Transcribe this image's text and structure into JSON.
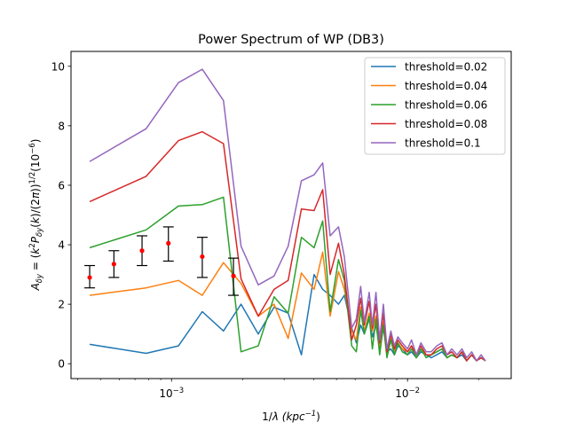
{
  "chart_data": {
    "type": "line",
    "title": "Power Spectrum of WP (DB3)",
    "xlabel": "1/λ (kpc⁻¹)",
    "ylabel": "A_δy = (k²P_δy(k)/(2π))^{1/2}(10⁻⁶)",
    "xscale": "log",
    "xlim": [
      0.000375,
      0.0275
    ],
    "ylim": [
      -0.5,
      10.5
    ],
    "yticks": [
      0,
      2,
      4,
      6,
      8,
      10
    ],
    "xticks_major": [
      0.001,
      0.01
    ],
    "xtick_labels": [
      "10⁻³",
      "10⁻²"
    ],
    "grid": false,
    "legend_position": "top-right",
    "legend": [
      "threshold=0.02",
      "threshold=0.04",
      "threshold=0.06",
      "threshold=0.08",
      "threshold=0.1"
    ],
    "series": [
      {
        "name": "threshold=0.02",
        "color": "#1f77b4",
        "x": [
          0.00045,
          0.00078,
          0.00107,
          0.00135,
          0.00166,
          0.00197,
          0.00233,
          0.00272,
          0.00312,
          0.00355,
          0.00402,
          0.00437,
          0.0047,
          0.0051,
          0.0054,
          0.0058,
          0.00607,
          0.00633,
          0.00656,
          0.00688,
          0.0071,
          0.00735,
          0.00762,
          0.0079,
          0.00818,
          0.0085,
          0.0088,
          0.0091,
          0.0095,
          0.01,
          0.0104,
          0.0109,
          0.0114,
          0.012,
          0.0126,
          0.0133,
          0.014,
          0.0147,
          0.0154,
          0.0162,
          0.017,
          0.0178,
          0.0187,
          0.0196,
          0.0205,
          0.0214
        ],
        "y": [
          0.65,
          0.35,
          0.6,
          1.75,
          1.1,
          2.0,
          1.0,
          1.9,
          1.7,
          0.3,
          3.0,
          2.5,
          2.3,
          2.0,
          2.3,
          1.2,
          0.7,
          1.3,
          1.0,
          1.5,
          0.9,
          1.3,
          0.5,
          1.2,
          0.4,
          0.5,
          0.3,
          0.6,
          0.5,
          0.3,
          0.4,
          0.2,
          0.4,
          0.3,
          0.2,
          0.3,
          0.4,
          0.2,
          0.3,
          0.2,
          0.3,
          0.1,
          0.3,
          0.1,
          0.2,
          0.1
        ]
      },
      {
        "name": "threshold=0.04",
        "color": "#ff7f0e",
        "x": [
          0.00045,
          0.00078,
          0.00107,
          0.00135,
          0.00166,
          0.00197,
          0.00233,
          0.00272,
          0.00312,
          0.00355,
          0.00402,
          0.00437,
          0.0047,
          0.0051,
          0.0054,
          0.0058,
          0.00607,
          0.00633,
          0.00656,
          0.00688,
          0.0071,
          0.00735,
          0.00762,
          0.0079,
          0.00818,
          0.0085,
          0.0088,
          0.0091,
          0.0095,
          0.01,
          0.0104,
          0.0109,
          0.0114,
          0.012,
          0.0126,
          0.0133,
          0.014,
          0.0147,
          0.0154,
          0.0162,
          0.017,
          0.0178,
          0.0187,
          0.0196,
          0.0205,
          0.0214
        ],
        "y": [
          2.3,
          2.55,
          2.8,
          2.3,
          3.4,
          2.7,
          1.6,
          2.0,
          0.85,
          3.05,
          2.5,
          3.75,
          1.6,
          3.1,
          2.5,
          1.1,
          0.8,
          1.9,
          1.1,
          1.7,
          1.1,
          1.6,
          0.6,
          1.4,
          0.3,
          0.9,
          0.4,
          0.7,
          0.5,
          0.4,
          0.6,
          0.2,
          0.5,
          0.3,
          0.3,
          0.4,
          0.5,
          0.2,
          0.3,
          0.2,
          0.4,
          0.1,
          0.3,
          0.1,
          0.2,
          0.1
        ]
      },
      {
        "name": "threshold=0.06",
        "color": "#2ca02c",
        "x": [
          0.00045,
          0.00078,
          0.00107,
          0.00135,
          0.00166,
          0.00197,
          0.00233,
          0.00272,
          0.00312,
          0.00355,
          0.00402,
          0.00437,
          0.0047,
          0.0051,
          0.0054,
          0.0058,
          0.00607,
          0.00633,
          0.00656,
          0.00688,
          0.0071,
          0.00735,
          0.00762,
          0.0079,
          0.00818,
          0.0085,
          0.0088,
          0.0091,
          0.0095,
          0.01,
          0.0104,
          0.0109,
          0.0114,
          0.012,
          0.0126,
          0.0133,
          0.014,
          0.0147,
          0.0154,
          0.0162,
          0.017,
          0.0178,
          0.0187,
          0.0196,
          0.0205,
          0.0214
        ],
        "y": [
          3.9,
          4.5,
          5.3,
          5.35,
          5.6,
          0.4,
          0.6,
          2.25,
          1.7,
          4.25,
          3.9,
          4.8,
          1.75,
          3.5,
          2.8,
          0.6,
          0.4,
          1.8,
          1.0,
          1.6,
          0.5,
          1.5,
          0.3,
          1.3,
          0.2,
          0.8,
          0.3,
          0.7,
          0.4,
          0.3,
          0.5,
          0.2,
          0.5,
          0.2,
          0.3,
          0.4,
          0.5,
          0.2,
          0.3,
          0.2,
          0.4,
          0.1,
          0.3,
          0.1,
          0.2,
          0.1
        ]
      },
      {
        "name": "threshold=0.08",
        "color": "#d62728",
        "x": [
          0.00045,
          0.00078,
          0.00107,
          0.00135,
          0.00166,
          0.00197,
          0.00233,
          0.00272,
          0.00312,
          0.00355,
          0.00402,
          0.00437,
          0.0047,
          0.0051,
          0.0054,
          0.0058,
          0.00607,
          0.00633,
          0.00656,
          0.00688,
          0.0071,
          0.00735,
          0.00762,
          0.0079,
          0.00818,
          0.0085,
          0.0088,
          0.0091,
          0.0095,
          0.01,
          0.0104,
          0.0109,
          0.0114,
          0.012,
          0.0126,
          0.0133,
          0.014,
          0.0147,
          0.0154,
          0.0162,
          0.017,
          0.0178,
          0.0187,
          0.0196,
          0.0205,
          0.0214
        ],
        "y": [
          5.45,
          6.3,
          7.5,
          7.8,
          7.4,
          2.85,
          1.6,
          2.5,
          2.8,
          5.2,
          5.15,
          5.85,
          3.0,
          4.05,
          3.0,
          0.8,
          1.3,
          2.2,
          1.3,
          2.1,
          1.2,
          2.0,
          0.7,
          1.7,
          0.4,
          1.0,
          0.5,
          0.8,
          0.6,
          0.4,
          0.6,
          0.3,
          0.6,
          0.3,
          0.3,
          0.5,
          0.6,
          0.3,
          0.4,
          0.2,
          0.4,
          0.1,
          0.3,
          0.1,
          0.2,
          0.1
        ]
      },
      {
        "name": "threshold=0.1",
        "color": "#9467bd",
        "x": [
          0.00045,
          0.00078,
          0.00107,
          0.00135,
          0.00166,
          0.00197,
          0.00233,
          0.00272,
          0.00312,
          0.00355,
          0.00402,
          0.00437,
          0.0047,
          0.0051,
          0.0054,
          0.0058,
          0.00607,
          0.00633,
          0.00656,
          0.00688,
          0.0071,
          0.00735,
          0.00762,
          0.0079,
          0.00818,
          0.0085,
          0.0088,
          0.0091,
          0.0095,
          0.01,
          0.0104,
          0.0109,
          0.0114,
          0.012,
          0.0126,
          0.0133,
          0.014,
          0.0147,
          0.0154,
          0.0162,
          0.017,
          0.0178,
          0.0187,
          0.0196,
          0.0205,
          0.0214
        ],
        "y": [
          6.8,
          7.9,
          9.45,
          9.9,
          8.85,
          3.95,
          2.65,
          2.95,
          3.95,
          6.15,
          6.35,
          6.75,
          4.3,
          4.6,
          3.6,
          1.2,
          1.5,
          2.6,
          1.4,
          2.4,
          1.3,
          2.4,
          0.8,
          2.0,
          0.5,
          1.1,
          0.6,
          0.9,
          0.7,
          0.5,
          0.8,
          0.3,
          0.7,
          0.4,
          0.4,
          0.6,
          0.7,
          0.3,
          0.5,
          0.3,
          0.5,
          0.2,
          0.4,
          0.1,
          0.3,
          0.1
        ]
      }
    ],
    "errorbars": {
      "color": "#000000",
      "marker_color": "#ff0000",
      "points": [
        {
          "x": 0.00045,
          "y": 2.9,
          "low": 2.55,
          "high": 3.3
        },
        {
          "x": 0.00057,
          "y": 3.35,
          "low": 2.9,
          "high": 3.8
        },
        {
          "x": 0.00075,
          "y": 3.8,
          "low": 3.3,
          "high": 4.3
        },
        {
          "x": 0.00097,
          "y": 4.05,
          "low": 3.45,
          "high": 4.6
        },
        {
          "x": 0.00135,
          "y": 3.6,
          "low": 2.9,
          "high": 4.25
        },
        {
          "x": 0.00183,
          "y": 2.95,
          "low": 2.3,
          "high": 3.55
        }
      ]
    }
  }
}
